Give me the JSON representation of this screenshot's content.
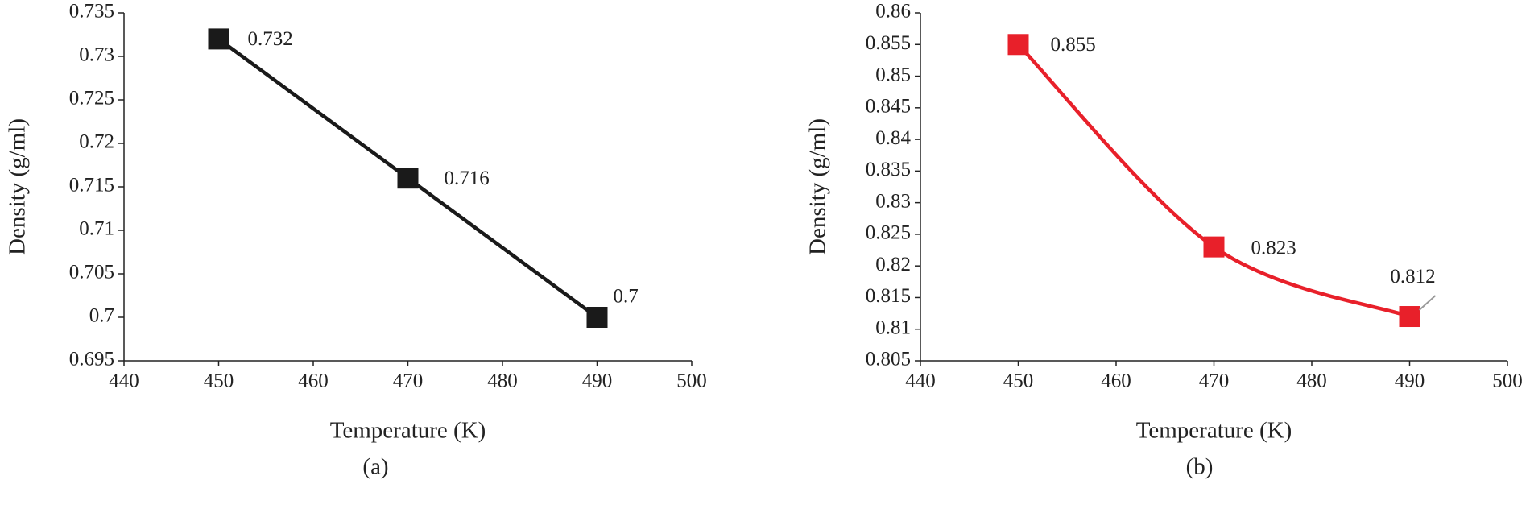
{
  "chart_data": [
    {
      "type": "line",
      "x": [
        450,
        470,
        490
      ],
      "values": [
        0.732,
        0.716,
        0.7
      ],
      "color": "#1a1a1a",
      "smooth": false,
      "xlim": [
        440,
        500
      ],
      "xticks": [
        440,
        450,
        460,
        470,
        480,
        490,
        500
      ],
      "ylim": [
        0.695,
        0.735
      ],
      "yticks": [
        0.695,
        0.7,
        0.705,
        0.71,
        0.715,
        0.72,
        0.725,
        0.73,
        0.735
      ],
      "x_label": "Temperature (K)",
      "y_label": "Density (g/ml)",
      "caption": "(a)"
    },
    {
      "type": "line",
      "x": [
        450,
        470,
        490
      ],
      "values": [
        0.855,
        0.823,
        0.812
      ],
      "color": "#e8202a",
      "smooth": true,
      "xlim": [
        440,
        500
      ],
      "xticks": [
        440,
        450,
        460,
        470,
        480,
        490,
        500
      ],
      "ylim": [
        0.805,
        0.86
      ],
      "yticks": [
        0.805,
        0.81,
        0.815,
        0.82,
        0.825,
        0.83,
        0.835,
        0.84,
        0.845,
        0.85,
        0.855,
        0.86
      ],
      "x_label": "Temperature (K)",
      "y_label": "Density (g/ml)",
      "caption": "(b)"
    }
  ]
}
